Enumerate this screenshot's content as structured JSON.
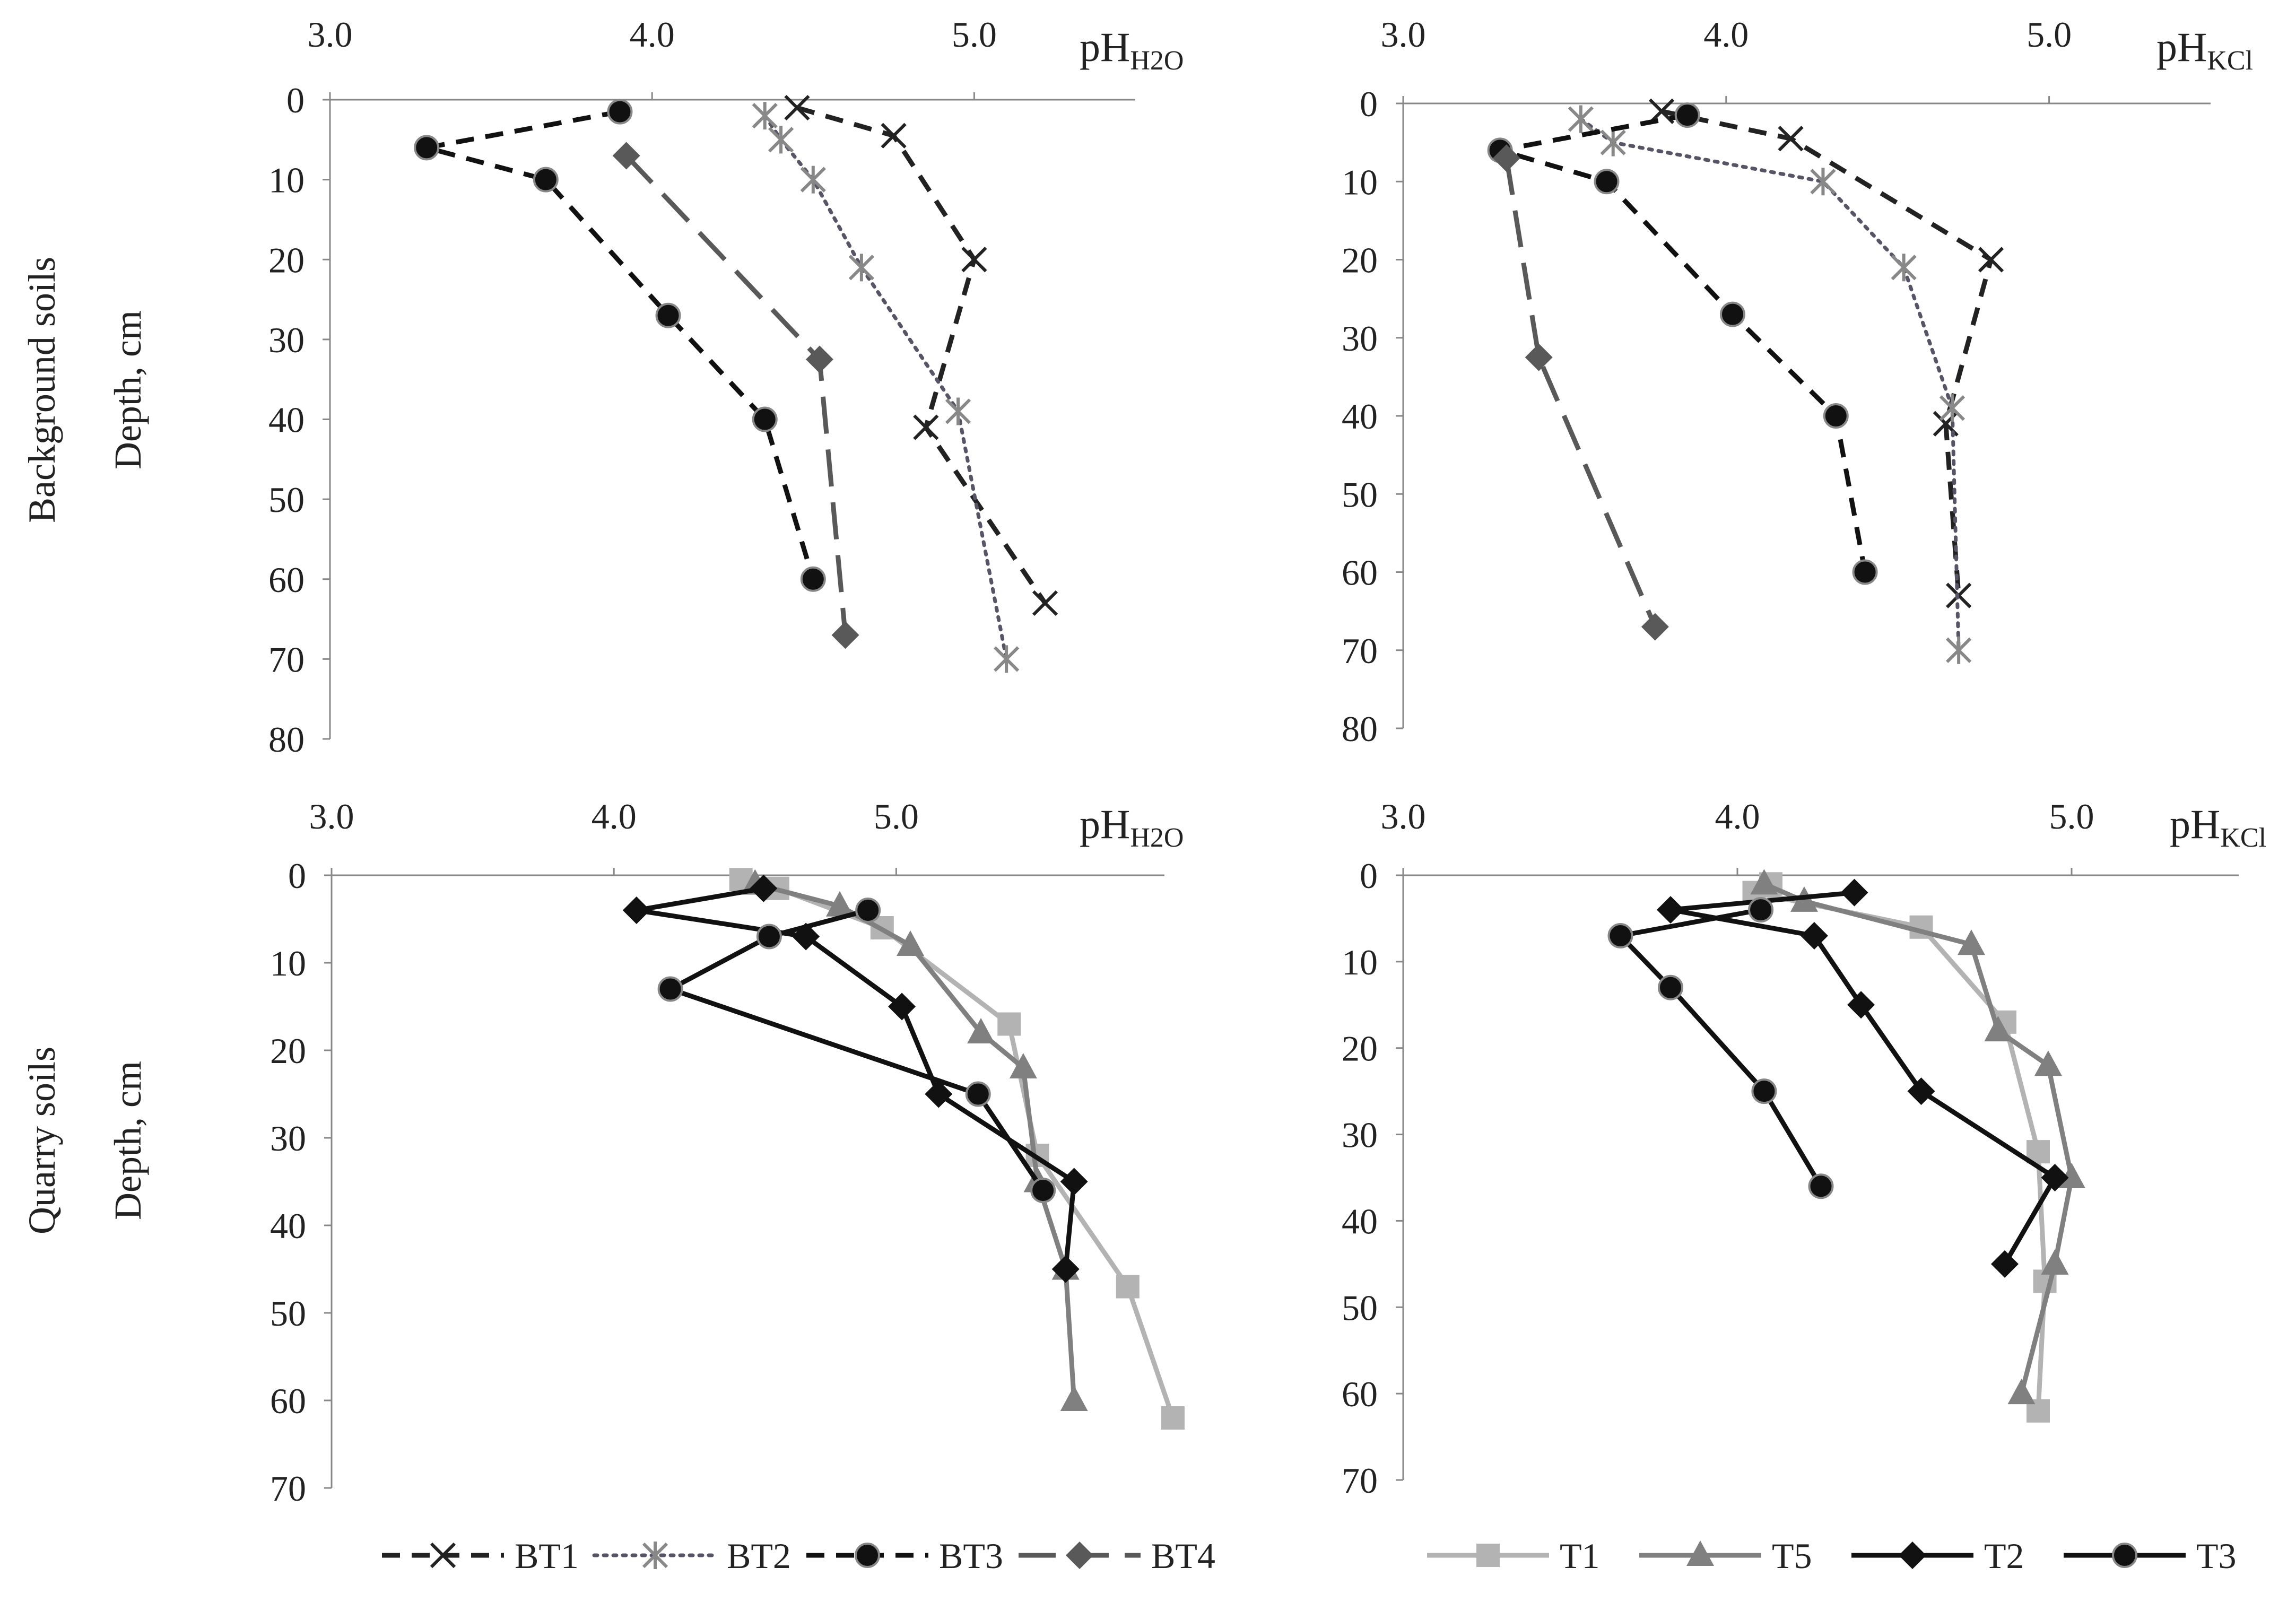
{
  "row_labels": {
    "background": "Background soils",
    "quarry": "Quarry soils",
    "depth": "Depth, cm"
  },
  "legend": {
    "background": [
      {
        "key": "BT1",
        "label": "BT1"
      },
      {
        "key": "BT2",
        "label": "BT2"
      },
      {
        "key": "BT3",
        "label": "BT3"
      },
      {
        "key": "BT4",
        "label": "BT4"
      }
    ],
    "quarry": [
      {
        "key": "T1",
        "label": "T1"
      },
      {
        "key": "T5",
        "label": "T5"
      },
      {
        "key": "T2",
        "label": "T2"
      },
      {
        "key": "T3",
        "label": "T3"
      }
    ]
  },
  "series_style": {
    "BT1": {
      "color": "#222222",
      "marker": "x",
      "dash": "dashed"
    },
    "BT2": {
      "color": "#555566",
      "marker": "star",
      "dash": "dotted",
      "marker_color": "#888888"
    },
    "BT3": {
      "color": "#111111",
      "marker": "circle",
      "dash": "dashed"
    },
    "BT4": {
      "color": "#595959",
      "marker": "diamond",
      "dash": "longdash"
    },
    "T1": {
      "color": "#b3b3b3",
      "marker": "square",
      "dash": "solid"
    },
    "T5": {
      "color": "#808080",
      "marker": "triangle",
      "dash": "solid"
    },
    "T2": {
      "color": "#111111",
      "marker": "diamond",
      "dash": "solid"
    },
    "T3": {
      "color": "#111111",
      "marker": "circle",
      "dash": "solid"
    }
  },
  "chart_data": [
    {
      "id": "bg-h2o",
      "type": "line",
      "title": "Background soils pH H2O",
      "xlabel": "pH",
      "xlabel_sub": "H2O",
      "ylabel": "Depth, cm",
      "xlim": [
        3.0,
        5.5
      ],
      "xticks": [
        "3.0",
        "4.0",
        "5.0"
      ],
      "ylim": [
        0,
        80
      ],
      "yticks": [
        "0",
        "10",
        "20",
        "30",
        "40",
        "50",
        "60",
        "70",
        "80"
      ],
      "series": [
        {
          "name": "BT1",
          "points": [
            [
              4.45,
              1
            ],
            [
              4.75,
              4.5
            ],
            [
              5.0,
              20
            ],
            [
              4.85,
              41
            ],
            [
              5.22,
              63
            ]
          ]
        },
        {
          "name": "BT2",
          "points": [
            [
              4.35,
              2
            ],
            [
              4.4,
              5
            ],
            [
              4.5,
              10
            ],
            [
              4.65,
              21
            ],
            [
              4.95,
              39
            ],
            [
              5.1,
              70
            ]
          ]
        },
        {
          "name": "BT3",
          "points": [
            [
              3.9,
              1.5
            ],
            [
              3.3,
              6
            ],
            [
              3.67,
              10
            ],
            [
              4.05,
              27
            ],
            [
              4.35,
              40
            ],
            [
              4.5,
              60
            ]
          ]
        },
        {
          "name": "BT4",
          "points": [
            [
              3.92,
              7
            ],
            [
              4.52,
              32.5
            ],
            [
              4.6,
              67
            ]
          ]
        }
      ]
    },
    {
      "id": "bg-kcl",
      "type": "line",
      "title": "Background soils pH KCl",
      "xlabel": "pH",
      "xlabel_sub": "KCl",
      "ylabel": "Depth, cm",
      "xlim": [
        3.0,
        5.5
      ],
      "xticks": [
        "3.0",
        "4.0",
        "5.0"
      ],
      "ylim": [
        0,
        80
      ],
      "yticks": [
        "0",
        "10",
        "20",
        "30",
        "40",
        "50",
        "60",
        "70",
        "80"
      ],
      "series": [
        {
          "name": "BT1",
          "points": [
            [
              3.8,
              1
            ],
            [
              4.2,
              4.5
            ],
            [
              4.82,
              20
            ],
            [
              4.68,
              41
            ],
            [
              4.72,
              63
            ]
          ]
        },
        {
          "name": "BT2",
          "points": [
            [
              3.55,
              2
            ],
            [
              3.65,
              5
            ],
            [
              4.3,
              10
            ],
            [
              4.55,
              21
            ],
            [
              4.7,
              39
            ],
            [
              4.72,
              70
            ]
          ]
        },
        {
          "name": "BT3",
          "points": [
            [
              3.88,
              1.5
            ],
            [
              3.3,
              6
            ],
            [
              3.63,
              10
            ],
            [
              4.02,
              27
            ],
            [
              4.34,
              40
            ],
            [
              4.43,
              60
            ]
          ]
        },
        {
          "name": "BT4",
          "points": [
            [
              3.32,
              7
            ],
            [
              3.42,
              32.5
            ],
            [
              3.78,
              67
            ]
          ]
        }
      ]
    },
    {
      "id": "q-h2o",
      "type": "line",
      "title": "Quarry soils pH H2O",
      "xlabel": "pH",
      "xlabel_sub": "H2O",
      "ylabel": "Depth, cm",
      "xlim": [
        3.0,
        5.95
      ],
      "xticks": [
        "3.0",
        "4.0",
        "5.0"
      ],
      "ylim": [
        0,
        70
      ],
      "yticks": [
        "0",
        "10",
        "20",
        "30",
        "40",
        "50",
        "60",
        "70"
      ],
      "series": [
        {
          "name": "T1",
          "points": [
            [
              4.45,
              0.5
            ],
            [
              4.58,
              1.5
            ],
            [
              4.95,
              6
            ],
            [
              5.4,
              17
            ],
            [
              5.5,
              32
            ],
            [
              5.82,
              47
            ],
            [
              5.98,
              62
            ]
          ]
        },
        {
          "name": "T5",
          "points": [
            [
              4.5,
              1
            ],
            [
              4.8,
              3.5
            ],
            [
              5.05,
              8
            ],
            [
              5.3,
              18
            ],
            [
              5.45,
              22
            ],
            [
              5.5,
              35
            ],
            [
              5.6,
              45
            ],
            [
              5.63,
              60
            ]
          ]
        },
        {
          "name": "T2",
          "points": [
            [
              4.53,
              1.5
            ],
            [
              4.08,
              4
            ],
            [
              4.68,
              7
            ],
            [
              5.02,
              15
            ],
            [
              5.15,
              25
            ],
            [
              5.63,
              35
            ],
            [
              5.6,
              45
            ]
          ]
        },
        {
          "name": "T3",
          "points": [
            [
              4.9,
              4
            ],
            [
              4.55,
              7
            ],
            [
              4.2,
              13
            ],
            [
              5.29,
              25
            ],
            [
              5.52,
              36
            ]
          ]
        }
      ]
    },
    {
      "id": "q-kcl",
      "type": "line",
      "title": "Quarry soils pH KCl",
      "xlabel": "pH",
      "xlabel_sub": "KCl",
      "ylabel": "Depth, cm",
      "xlim": [
        3.0,
        5.5
      ],
      "xticks": [
        "3.0",
        "4.0",
        "5.0"
      ],
      "ylim": [
        0,
        70
      ],
      "yticks": [
        "0",
        "10",
        "20",
        "30",
        "40",
        "50",
        "60",
        "70"
      ],
      "series": [
        {
          "name": "T1",
          "points": [
            [
              4.1,
              1
            ],
            [
              4.05,
              2
            ],
            [
              4.55,
              6
            ],
            [
              4.8,
              17
            ],
            [
              4.9,
              32
            ],
            [
              4.92,
              47
            ],
            [
              4.9,
              62
            ]
          ]
        },
        {
          "name": "T5",
          "points": [
            [
              4.08,
              1
            ],
            [
              4.2,
              3
            ],
            [
              4.7,
              8
            ],
            [
              4.78,
              18
            ],
            [
              4.93,
              22
            ],
            [
              5.0,
              35
            ],
            [
              4.95,
              45
            ],
            [
              4.85,
              60
            ]
          ]
        },
        {
          "name": "T2",
          "points": [
            [
              4.35,
              2
            ],
            [
              3.8,
              4
            ],
            [
              4.23,
              7
            ],
            [
              4.37,
              15
            ],
            [
              4.55,
              25
            ],
            [
              4.95,
              35
            ],
            [
              4.8,
              45
            ]
          ]
        },
        {
          "name": "T3",
          "points": [
            [
              4.07,
              4
            ],
            [
              3.65,
              7
            ],
            [
              3.8,
              13
            ],
            [
              4.08,
              25
            ],
            [
              4.25,
              36
            ]
          ]
        }
      ]
    }
  ]
}
